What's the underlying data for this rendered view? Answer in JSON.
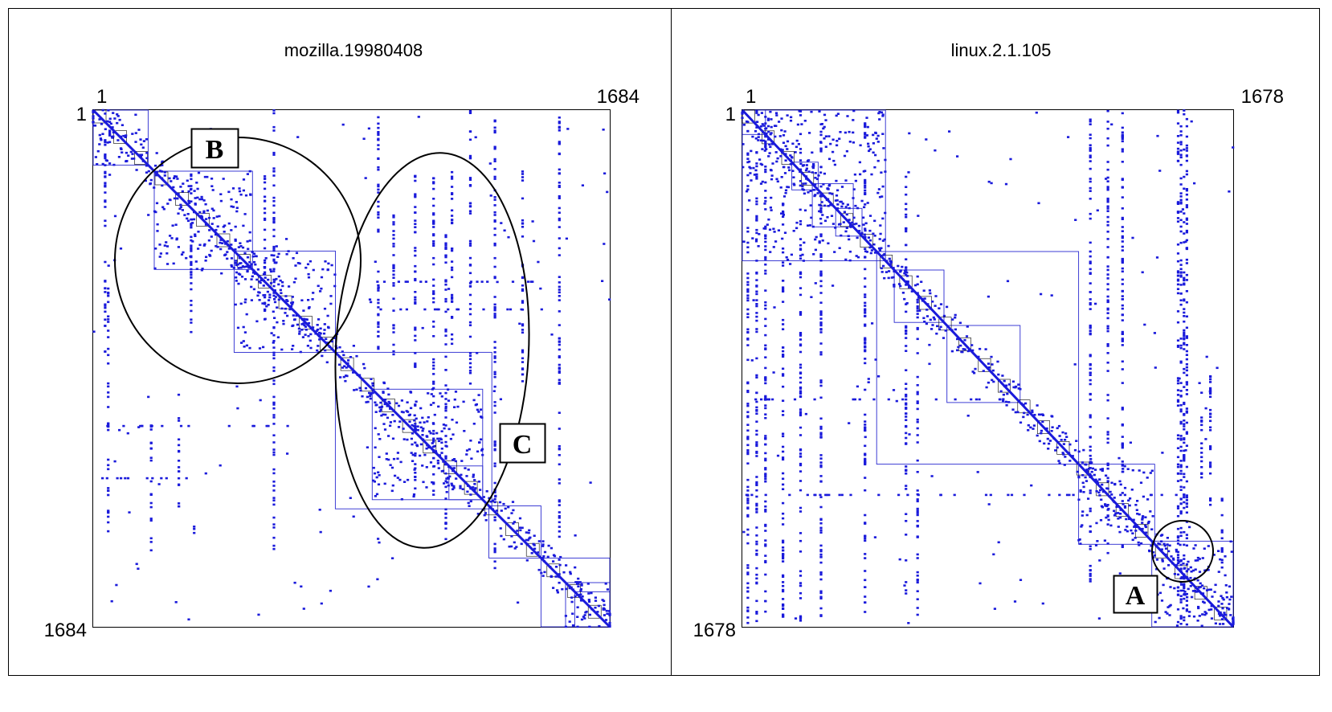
{
  "colors": {
    "marks": "#1a1adb",
    "frame": "#000000",
    "cluster_box": "#2a2ad0"
  },
  "chart_data": [
    {
      "type": "scatter",
      "title": "mozilla.19980408",
      "axis_min": 1,
      "axis_max": 1684,
      "corner_labels": {
        "top_left": "1",
        "left_top": "1",
        "top_right": "1684",
        "left_bottom": "1684"
      },
      "callouts": [
        "B",
        "C"
      ],
      "clusters": [
        [
          1,
          180
        ],
        [
          200,
          520
        ],
        [
          460,
          790
        ],
        [
          790,
          1300
        ],
        [
          910,
          1270
        ],
        [
          1160,
          1270
        ],
        [
          1290,
          1460
        ],
        [
          1460,
          1684
        ],
        [
          1540,
          1684
        ],
        [
          1570,
          1684
        ]
      ],
      "dense_blocks": [
        [
          1,
          180,
          1,
          180
        ],
        [
          200,
          520,
          200,
          520
        ],
        [
          460,
          790,
          460,
          790
        ],
        [
          910,
          1270,
          910,
          1270
        ],
        [
          1540,
          1684,
          1540,
          1684
        ]
      ],
      "columns": [
        {
          "x": 40,
          "y": [
            1,
            800
          ]
        },
        {
          "x": 50,
          "y": [
            560,
            1380
          ]
        },
        {
          "x": 55,
          "y": [
            1,
            220
          ]
        },
        {
          "x": 190,
          "y": [
            1000,
            1440
          ]
        },
        {
          "x": 280,
          "y": [
            1000,
            1300
          ]
        },
        {
          "x": 320,
          "y": [
            200,
            760
          ]
        },
        {
          "x": 330,
          "y": [
            1300,
            1400
          ]
        },
        {
          "x": 560,
          "y": [
            200,
            700
          ]
        },
        {
          "x": 590,
          "y": [
            1,
            1480
          ]
        },
        {
          "x": 930,
          "y": [
            1,
            820
          ]
        },
        {
          "x": 980,
          "y": [
            300,
            820
          ]
        },
        {
          "x": 1050,
          "y": [
            200,
            1240
          ]
        },
        {
          "x": 1110,
          "y": [
            200,
            1260
          ]
        },
        {
          "x": 1150,
          "y": [
            400,
            1400
          ]
        },
        {
          "x": 1170,
          "y": [
            200,
            780
          ]
        },
        {
          "x": 1230,
          "y": [
            1,
            900
          ]
        },
        {
          "x": 1310,
          "y": [
            1,
            1500
          ]
        },
        {
          "x": 1400,
          "y": [
            200,
            900
          ]
        },
        {
          "x": 1520,
          "y": [
            1,
            1400
          ]
        }
      ],
      "rows": [
        {
          "y": 560,
          "x": [
            900,
            1500
          ]
        },
        {
          "y": 650,
          "x": [
            900,
            1500
          ]
        },
        {
          "y": 1030,
          "x": [
            30,
            640
          ]
        },
        {
          "y": 1200,
          "x": [
            30,
            460
          ]
        }
      ],
      "scatter_count": 520,
      "seed": 7
    },
    {
      "type": "scatter",
      "title": "linux.2.1.105",
      "axis_min": 1,
      "axis_max": 1678,
      "corner_labels": {
        "top_left": "1",
        "left_top": "1",
        "top_right": "1678",
        "left_bottom": "1678"
      },
      "callouts": [
        "A"
      ],
      "clusters": [
        [
          1,
          490
        ],
        [
          1,
          80
        ],
        [
          170,
          260
        ],
        [
          240,
          380
        ],
        [
          320,
          410
        ],
        [
          460,
          1150
        ],
        [
          520,
          690
        ],
        [
          700,
          950
        ],
        [
          1150,
          1410
        ],
        [
          1400,
          1678
        ]
      ],
      "dense_blocks": [
        [
          1,
          490,
          1,
          490
        ],
        [
          1150,
          1410,
          1150,
          1410
        ],
        [
          1400,
          1678,
          1400,
          1678
        ]
      ],
      "columns": [
        {
          "x": 20,
          "y": [
            1,
            1678
          ]
        },
        {
          "x": 50,
          "y": [
            1,
            1678
          ]
        },
        {
          "x": 80,
          "y": [
            1,
            1678
          ]
        },
        {
          "x": 140,
          "y": [
            300,
            1678
          ]
        },
        {
          "x": 200,
          "y": [
            1,
            1670
          ]
        },
        {
          "x": 270,
          "y": [
            1,
            1670
          ]
        },
        {
          "x": 420,
          "y": [
            1,
            1660
          ]
        },
        {
          "x": 560,
          "y": [
            200,
            1580
          ]
        },
        {
          "x": 600,
          "y": [
            500,
            1640
          ]
        },
        {
          "x": 1190,
          "y": [
            1,
            1550
          ]
        },
        {
          "x": 1250,
          "y": [
            1,
            1450
          ]
        },
        {
          "x": 1300,
          "y": [
            1,
            1430
          ]
        },
        {
          "x": 1490,
          "y": [
            1,
            1678
          ]
        },
        {
          "x": 1500,
          "y": [
            1,
            1678
          ]
        },
        {
          "x": 1510,
          "y": [
            1,
            1678
          ]
        },
        {
          "x": 1520,
          "y": [
            1,
            1678
          ]
        },
        {
          "x": 1570,
          "y": [
            900,
            1250
          ]
        },
        {
          "x": 1600,
          "y": [
            800,
            1300
          ]
        },
        {
          "x": 1640,
          "y": [
            1250,
            1500
          ]
        }
      ],
      "rows": [
        {
          "y": 940,
          "x": [
            1,
            900
          ]
        },
        {
          "y": 1250,
          "x": [
            1,
            1500
          ]
        }
      ],
      "scatter_count": 480,
      "seed": 13
    }
  ]
}
